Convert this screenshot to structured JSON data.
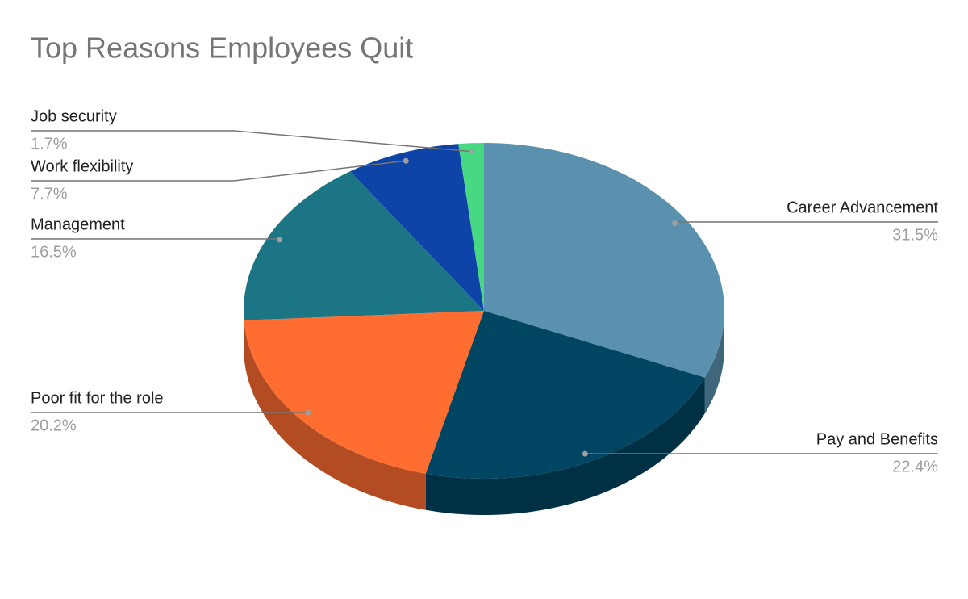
{
  "chart_data": {
    "type": "pie",
    "title": "Top Reasons Employees Quit",
    "categories": [
      "Career Advancement",
      "Pay and Benefits",
      "Poor fit for the role",
      "Management",
      "Work flexibility",
      "Job security"
    ],
    "values": [
      31.5,
      22.4,
      20.2,
      16.5,
      7.7,
      1.7
    ],
    "value_labels": [
      "31.5%",
      "22.4%",
      "20.2%",
      "16.5%",
      "7.7%",
      "1.7%"
    ],
    "colors": [
      "#5a91ae",
      "#004561",
      "#ff6d31",
      "#1c7585",
      "#0e43a8",
      "#46d883"
    ]
  }
}
